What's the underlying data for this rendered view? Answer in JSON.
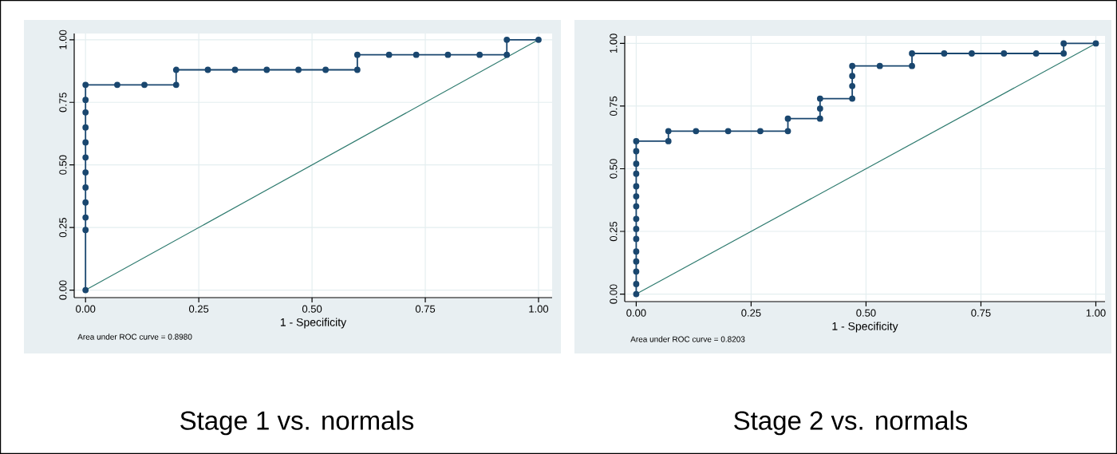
{
  "chart_data": [
    {
      "type": "line",
      "title": "Stage 1 vs. normals",
      "xlabel": "1 - Specificity",
      "annotations": [
        "Area under ROC curve = 0.8980"
      ],
      "xlim": [
        -0.025,
        1.03
      ],
      "ylim": [
        -0.03,
        1.025
      ],
      "xticks": [
        {
          "value": 0,
          "label": "0.00"
        },
        {
          "value": 0.25,
          "label": "0.25"
        },
        {
          "value": 0.5,
          "label": "0.50"
        },
        {
          "value": 0.75,
          "label": "0.75"
        },
        {
          "value": 1,
          "label": "1.00"
        }
      ],
      "yticks": [
        {
          "value": 0,
          "label": "0.00"
        },
        {
          "value": 0.25,
          "label": "0.25"
        },
        {
          "value": 0.5,
          "label": "0.50"
        },
        {
          "value": 0.75,
          "label": "0.75"
        },
        {
          "value": 1,
          "label": "1.00"
        }
      ],
      "grid": true,
      "marker": "circle",
      "line_style": "solid",
      "series": [
        {
          "color": "#1a476f",
          "x": [
            0,
            0,
            0,
            0,
            0,
            0,
            0,
            0,
            0,
            0,
            0,
            0,
            0.07,
            0.13,
            0.2,
            0.2,
            0.27,
            0.33,
            0.4,
            0.47,
            0.53,
            0.6,
            0.6,
            0.67,
            0.73,
            0.8,
            0.87,
            0.93,
            0.93,
            1
          ],
          "values": [
            0,
            0.24,
            0.29,
            0.35,
            0.41,
            0.47,
            0.53,
            0.59,
            0.65,
            0.71,
            0.76,
            0.82,
            0.82,
            0.82,
            0.82,
            0.88,
            0.88,
            0.88,
            0.88,
            0.88,
            0.88,
            0.88,
            0.94,
            0.94,
            0.94,
            0.94,
            0.94,
            0.94,
            1,
            1
          ]
        },
        {
          "color": "#2d7a6e",
          "marker": "none",
          "x": [
            0,
            1
          ],
          "values": [
            0,
            1
          ]
        }
      ]
    },
    {
      "type": "line",
      "title": "Stage 2 vs. normals",
      "xlabel": "1 - Specificity",
      "annotations": [
        "Area under ROC curve = 0.8203"
      ],
      "xlim": [
        -0.025,
        1.02
      ],
      "ylim": [
        -0.03,
        1.03
      ],
      "xticks": [
        {
          "value": 0,
          "label": "0.00"
        },
        {
          "value": 0.25,
          "label": "0.25"
        },
        {
          "value": 0.5,
          "label": "0.50"
        },
        {
          "value": 0.75,
          "label": "0.75"
        },
        {
          "value": 1,
          "label": "1.00"
        }
      ],
      "yticks": [
        {
          "value": 0,
          "label": "0.00"
        },
        {
          "value": 0.25,
          "label": "0.25"
        },
        {
          "value": 0.5,
          "label": "0.50"
        },
        {
          "value": 0.75,
          "label": "0.75"
        },
        {
          "value": 1,
          "label": "1.00"
        }
      ],
      "grid": true,
      "marker": "circle",
      "line_style": "solid",
      "series": [
        {
          "color": "#1a476f",
          "x": [
            0,
            0,
            0,
            0,
            0,
            0,
            0,
            0,
            0,
            0,
            0,
            0,
            0,
            0,
            0,
            0.07,
            0.07,
            0.13,
            0.2,
            0.27,
            0.33,
            0.33,
            0.4,
            0.4,
            0.4,
            0.47,
            0.47,
            0.47,
            0.47,
            0.53,
            0.6,
            0.6,
            0.67,
            0.73,
            0.8,
            0.87,
            0.93,
            0.93,
            1
          ],
          "values": [
            0,
            0.04,
            0.09,
            0.13,
            0.17,
            0.22,
            0.26,
            0.3,
            0.35,
            0.39,
            0.43,
            0.48,
            0.52,
            0.57,
            0.61,
            0.61,
            0.65,
            0.65,
            0.65,
            0.65,
            0.65,
            0.7,
            0.7,
            0.74,
            0.78,
            0.78,
            0.83,
            0.87,
            0.91,
            0.91,
            0.91,
            0.96,
            0.96,
            0.96,
            0.96,
            0.96,
            0.96,
            1,
            1
          ]
        },
        {
          "color": "#2d7a6e",
          "marker": "none",
          "x": [
            0,
            1
          ],
          "values": [
            0,
            1
          ]
        }
      ]
    }
  ]
}
